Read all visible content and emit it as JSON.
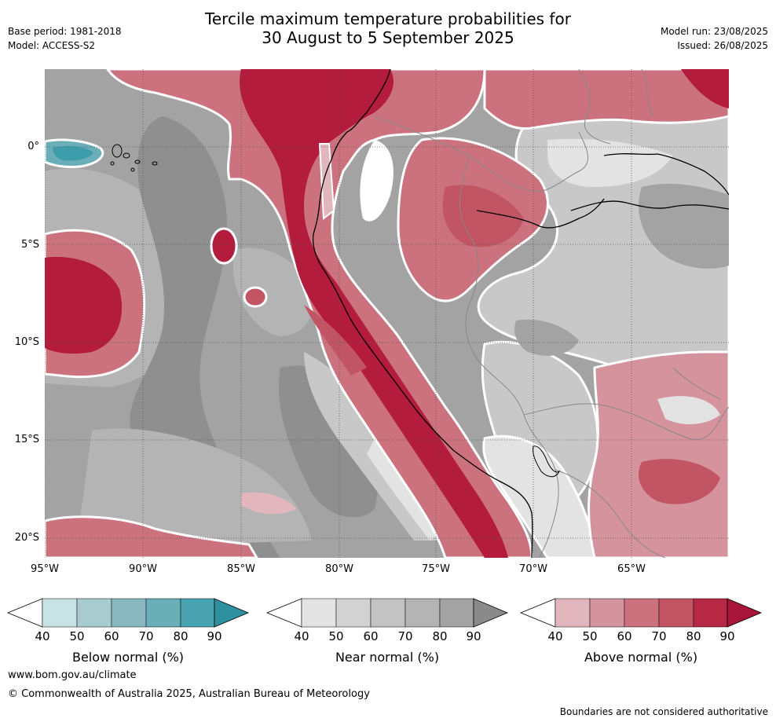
{
  "title_line1": "Tercile maximum temperature probabilities for",
  "title_line2": "30 August to 5 September 2025",
  "base_period": "Base period: 1981-2018",
  "model": "Model: ACCESS-S2",
  "model_run": "Model run: 23/08/2025",
  "issued": "Issued: 26/08/2025",
  "axes": {
    "lon_labels": [
      "95°W",
      "90°W",
      "85°W",
      "80°W",
      "75°W",
      "70°W",
      "65°W"
    ],
    "lat_labels": [
      "0°",
      "5°S",
      "10°S",
      "15°S",
      "20°S"
    ]
  },
  "legends": [
    {
      "title": "Below normal (%)",
      "ticks": [
        "40",
        "50",
        "60",
        "70",
        "80",
        "90"
      ],
      "colors": [
        "#c9e2e6",
        "#a8cbd0",
        "#8ab9c2",
        "#6aaeb8",
        "#4aa3b0",
        "#2e8f9e"
      ]
    },
    {
      "title": "Near normal (%)",
      "ticks": [
        "40",
        "50",
        "60",
        "70",
        "80",
        "90"
      ],
      "colors": [
        "#e3e3e3",
        "#d2d2d2",
        "#c3c3c3",
        "#b4b4b4",
        "#a3a3a3",
        "#8a8a8a"
      ]
    },
    {
      "title": "Above normal (%)",
      "ticks": [
        "40",
        "50",
        "60",
        "70",
        "80",
        "90"
      ],
      "colors": [
        "#e2b6bd",
        "#d5939d",
        "#cb727e",
        "#c25564",
        "#b62843",
        "#a8153a"
      ]
    }
  ],
  "footer_url": "www.bom.gov.au/climate",
  "copyright": "© Commonwealth of Australia 2025, Australian Bureau of Meteorology",
  "disclaimer": "Boundaries are not considered authoritative",
  "colors": {
    "near_base": "#a3a3a3",
    "near_dark": "#8f8f8f",
    "near_mid": "#b4b4b4",
    "near_light": "#c8c8c8",
    "near_pale": "#e3e3e3",
    "above_light": "#e2b6bd",
    "above_mid": "#cb727e",
    "above_strong": "#c25564",
    "above_dark": "#b31c3d",
    "below_mid": "#6aaeb8",
    "below_dark": "#3e9daa",
    "coast": "#000000",
    "border": "#888888"
  }
}
